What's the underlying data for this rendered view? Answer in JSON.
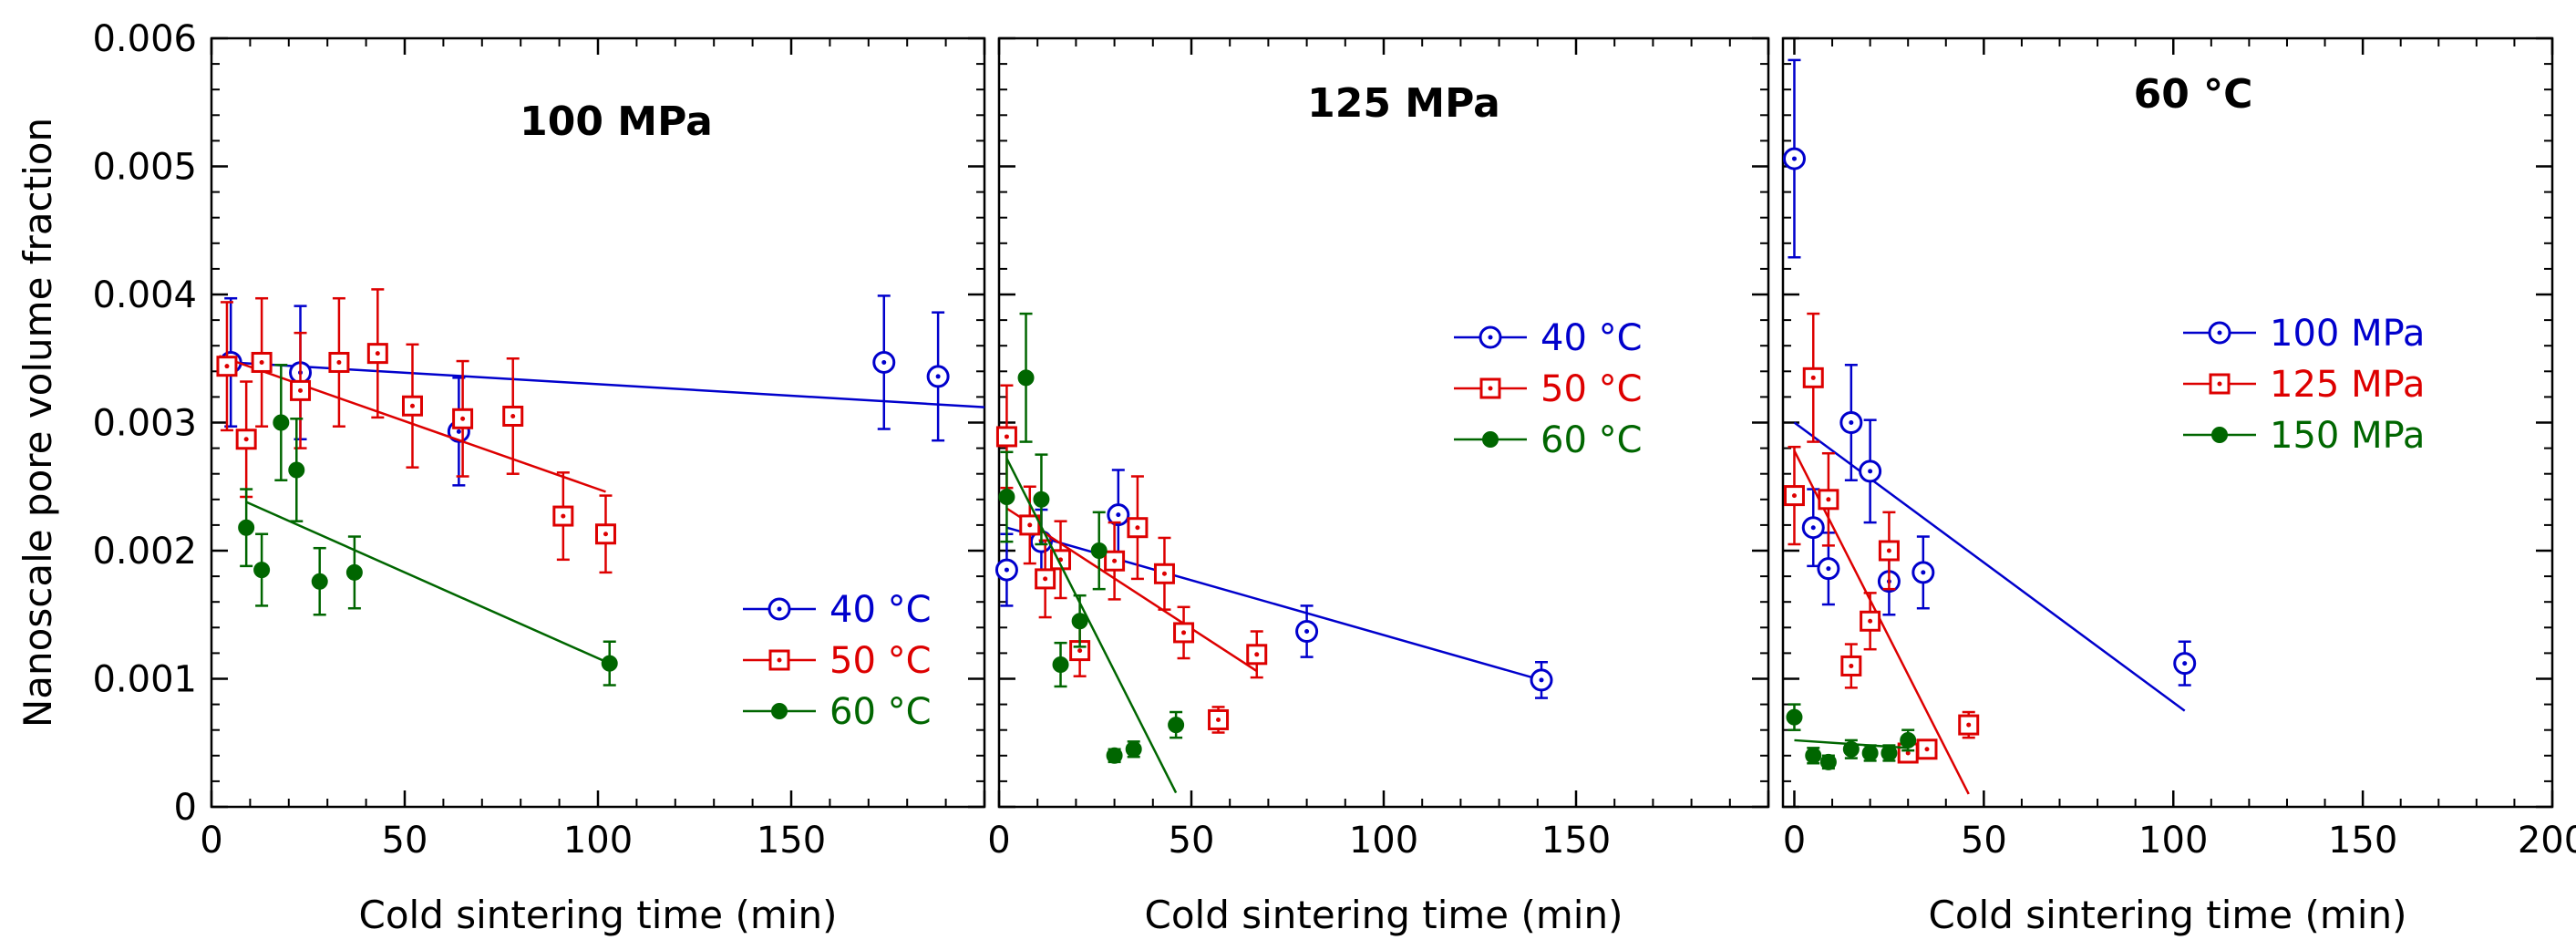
{
  "chart_data": [
    {
      "type": "scatter",
      "title": "100 MPa",
      "xlabel": "Cold sintering time (min)",
      "ylabel": "Nanoscale pore volume fraction",
      "xlim": [
        0,
        200
      ],
      "ylim": [
        0,
        0.006
      ],
      "x_ticks": [
        "0",
        "50",
        "100",
        "150"
      ],
      "y_ticks": [
        "0",
        "0.001",
        "0.002",
        "0.003",
        "0.004",
        "0.005",
        "0.006"
      ],
      "legend_position": "lower-right",
      "series": [
        {
          "name": "40 °C",
          "color": "#0000cc",
          "marker": "circle-dot",
          "points": [
            {
              "x": 5,
              "y": 0.00347,
              "err": 0.0005
            },
            {
              "x": 23,
              "y": 0.00339,
              "err": 0.00052
            },
            {
              "x": 64,
              "y": 0.00293,
              "err": 0.00042
            },
            {
              "x": 174,
              "y": 0.00347,
              "err": 0.00052
            },
            {
              "x": 188,
              "y": 0.00336,
              "err": 0.0005
            }
          ],
          "fit": [
            [
              5,
              0.00347
            ],
            [
              200,
              0.00312
            ]
          ]
        },
        {
          "name": "50 °C",
          "color": "#dd0000",
          "marker": "square-dot",
          "points": [
            {
              "x": 4,
              "y": 0.00344,
              "err": 0.0005
            },
            {
              "x": 9,
              "y": 0.00287,
              "err": 0.00045
            },
            {
              "x": 13,
              "y": 0.00347,
              "err": 0.0005
            },
            {
              "x": 23,
              "y": 0.00325,
              "err": 0.00045
            },
            {
              "x": 33,
              "y": 0.00347,
              "err": 0.0005
            },
            {
              "x": 43,
              "y": 0.00354,
              "err": 0.0005
            },
            {
              "x": 52,
              "y": 0.00313,
              "err": 0.00048
            },
            {
              "x": 65,
              "y": 0.00303,
              "err": 0.00045
            },
            {
              "x": 78,
              "y": 0.00305,
              "err": 0.00045
            },
            {
              "x": 91,
              "y": 0.00227,
              "err": 0.00034
            },
            {
              "x": 102,
              "y": 0.00213,
              "err": 0.0003
            }
          ],
          "fit": [
            [
              2,
              0.00352
            ],
            [
              102,
              0.00246
            ]
          ]
        },
        {
          "name": "60 °C",
          "color": "#006600",
          "marker": "filled-circle",
          "points": [
            {
              "x": 9,
              "y": 0.00218,
              "err": 0.0003
            },
            {
              "x": 13,
              "y": 0.00185,
              "err": 0.00028
            },
            {
              "x": 18,
              "y": 0.003,
              "err": 0.00045
            },
            {
              "x": 22,
              "y": 0.00263,
              "err": 0.0004
            },
            {
              "x": 28,
              "y": 0.00176,
              "err": 0.00026
            },
            {
              "x": 37,
              "y": 0.00183,
              "err": 0.00028
            },
            {
              "x": 103,
              "y": 0.00112,
              "err": 0.00017
            }
          ],
          "fit": [
            [
              9,
              0.00238
            ],
            [
              103,
              0.00112
            ]
          ]
        }
      ]
    },
    {
      "type": "scatter",
      "title": "125 MPa",
      "xlabel": "Cold sintering time (min)",
      "xlim": [
        0,
        200
      ],
      "ylim": [
        0,
        0.006
      ],
      "x_ticks": [
        "0",
        "50",
        "100",
        "150"
      ],
      "legend_position": "top-right",
      "series": [
        {
          "name": "40 °C",
          "color": "#0000cc",
          "marker": "circle-dot",
          "points": [
            {
              "x": 2,
              "y": 0.00185,
              "err": 0.00028
            },
            {
              "x": 11,
              "y": 0.00207,
              "err": 0.00025
            },
            {
              "x": 31,
              "y": 0.00228,
              "err": 0.00035
            },
            {
              "x": 80,
              "y": 0.00137,
              "err": 0.0002
            },
            {
              "x": 141,
              "y": 0.00099,
              "err": 0.00014
            }
          ],
          "fit": [
            [
              2,
              0.00218
            ],
            [
              141,
              0.00099
            ]
          ]
        },
        {
          "name": "50 °C",
          "color": "#dd0000",
          "marker": "square-dot",
          "points": [
            {
              "x": 2,
              "y": 0.00289,
              "err": 0.0004
            },
            {
              "x": 8,
              "y": 0.0022,
              "err": 0.0003
            },
            {
              "x": 12,
              "y": 0.00178,
              "err": 0.0003
            },
            {
              "x": 16,
              "y": 0.00193,
              "err": 0.0003
            },
            {
              "x": 21,
              "y": 0.00122,
              "err": 0.0002
            },
            {
              "x": 30,
              "y": 0.00192,
              "err": 0.0003
            },
            {
              "x": 36,
              "y": 0.00218,
              "err": 0.0004
            },
            {
              "x": 43,
              "y": 0.00182,
              "err": 0.00028
            },
            {
              "x": 48,
              "y": 0.00136,
              "err": 0.0002
            },
            {
              "x": 57,
              "y": 0.00068,
              "err": 0.0001
            },
            {
              "x": 67,
              "y": 0.00119,
              "err": 0.00018
            }
          ],
          "fit": [
            [
              2,
              0.00233
            ],
            [
              67,
              0.00106
            ]
          ]
        },
        {
          "name": "60 °C",
          "color": "#006600",
          "marker": "filled-circle",
          "points": [
            {
              "x": 2,
              "y": 0.00242,
              "err": 0.00035
            },
            {
              "x": 7,
              "y": 0.00335,
              "err": 0.0005
            },
            {
              "x": 11,
              "y": 0.0024,
              "err": 0.00035
            },
            {
              "x": 16,
              "y": 0.00111,
              "err": 0.00017
            },
            {
              "x": 21,
              "y": 0.00145,
              "err": 0.0002
            },
            {
              "x": 26,
              "y": 0.002,
              "err": 0.0003
            },
            {
              "x": 30,
              "y": 0.0004,
              "err": 5e-05
            },
            {
              "x": 35,
              "y": 0.00045,
              "err": 6e-05
            },
            {
              "x": 46,
              "y": 0.00064,
              "err": 0.0001
            }
          ],
          "fit": [
            [
              2,
              0.00272
            ],
            [
              46,
              0.00011
            ]
          ]
        }
      ]
    },
    {
      "type": "scatter",
      "title": "60 °C",
      "xlabel": "Cold sintering time (min)",
      "xlim": [
        -3,
        200
      ],
      "ylim": [
        0,
        0.006
      ],
      "x_ticks": [
        "0",
        "50",
        "100",
        "150",
        "200"
      ],
      "legend_position": "top-right",
      "series": [
        {
          "name": "100 MPa",
          "color": "#0000cc",
          "marker": "circle-dot",
          "points": [
            {
              "x": 0,
              "y": 0.00506,
              "err": 0.00077
            },
            {
              "x": 5,
              "y": 0.00218,
              "err": 0.0003
            },
            {
              "x": 9,
              "y": 0.00186,
              "err": 0.00028
            },
            {
              "x": 15,
              "y": 0.003,
              "err": 0.00045
            },
            {
              "x": 20,
              "y": 0.00262,
              "err": 0.0004
            },
            {
              "x": 25,
              "y": 0.00176,
              "err": 0.00026
            },
            {
              "x": 34,
              "y": 0.00183,
              "err": 0.00028
            },
            {
              "x": 103,
              "y": 0.00112,
              "err": 0.00017
            }
          ],
          "fit": [
            [
              0,
              0.003
            ],
            [
              103,
              0.00075
            ]
          ]
        },
        {
          "name": "125 MPa",
          "color": "#dd0000",
          "marker": "square-dot",
          "points": [
            {
              "x": 0,
              "y": 0.00243,
              "err": 0.00038
            },
            {
              "x": 5,
              "y": 0.00335,
              "err": 0.0005
            },
            {
              "x": 9,
              "y": 0.0024,
              "err": 0.00036
            },
            {
              "x": 15,
              "y": 0.0011,
              "err": 0.00017
            },
            {
              "x": 20,
              "y": 0.00145,
              "err": 0.00022
            },
            {
              "x": 25,
              "y": 0.002,
              "err": 0.0003
            },
            {
              "x": 30,
              "y": 0.00042,
              "err": 6e-05
            },
            {
              "x": 35,
              "y": 0.00045,
              "err": 7e-05
            },
            {
              "x": 46,
              "y": 0.00064,
              "err": 0.0001
            }
          ],
          "fit": [
            [
              0,
              0.00278
            ],
            [
              46,
              0.0001
            ]
          ]
        },
        {
          "name": "150 MPa",
          "color": "#006600",
          "marker": "filled-circle",
          "points": [
            {
              "x": 0,
              "y": 0.0007,
              "err": 0.0001
            },
            {
              "x": 5,
              "y": 0.0004,
              "err": 6e-05
            },
            {
              "x": 9,
              "y": 0.00035,
              "err": 5e-05
            },
            {
              "x": 15,
              "y": 0.00045,
              "err": 7e-05
            },
            {
              "x": 20,
              "y": 0.00042,
              "err": 6e-05
            },
            {
              "x": 25,
              "y": 0.00042,
              "err": 6e-05
            },
            {
              "x": 30,
              "y": 0.00052,
              "err": 8e-05
            }
          ],
          "fit": [
            [
              0,
              0.00052
            ],
            [
              30,
              0.00046
            ]
          ]
        }
      ]
    }
  ]
}
